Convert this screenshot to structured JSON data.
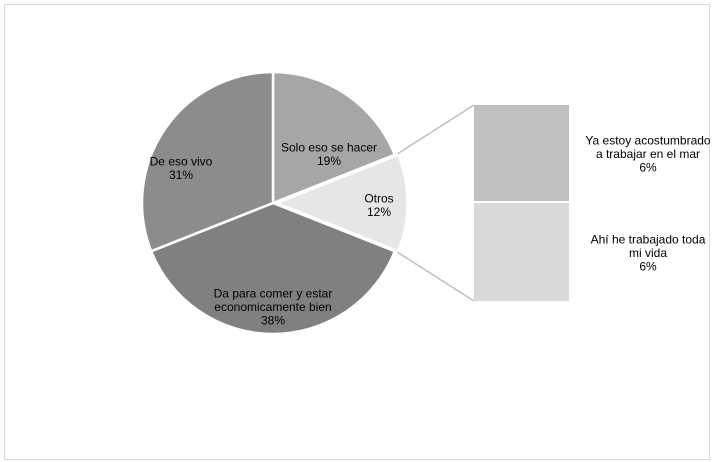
{
  "chart_data": {
    "type": "pie",
    "variant": "bar-of-pie",
    "title": "",
    "slices": [
      {
        "label_lines": [
          "Solo eso se hacer"
        ],
        "value": 19,
        "pct_label": "19%",
        "color": "#a6a6a6"
      },
      {
        "label_lines": [
          "Otros"
        ],
        "value": 12,
        "pct_label": "12%",
        "color": "#e6e6e6"
      },
      {
        "label_lines": [
          "Da para comer y estar",
          "economicamente bien"
        ],
        "value": 38,
        "pct_label": "38%",
        "color": "#808080"
      },
      {
        "label_lines": [
          "De eso vivo"
        ],
        "value": 31,
        "pct_label": "31%",
        "color": "#8c8c8c"
      }
    ],
    "secondary_bar": [
      {
        "label_lines": [
          "Ya estoy acostumbrado",
          "a trabajar en el mar"
        ],
        "value": 6,
        "pct_label": "6%",
        "color": "#bfbfbf"
      },
      {
        "label_lines": [
          "Ahí he trabajado toda",
          "mi vida"
        ],
        "value": 6,
        "pct_label": "6%",
        "color": "#d9d9d9"
      }
    ],
    "legend": "none"
  }
}
